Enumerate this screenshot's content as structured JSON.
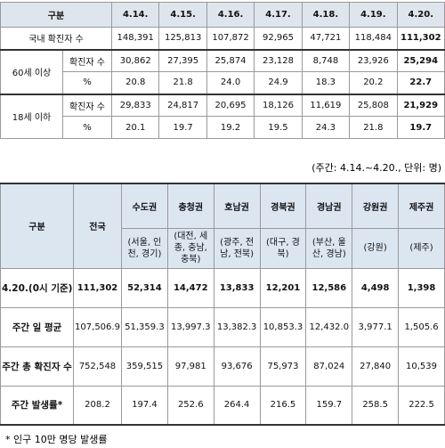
{
  "table1": {
    "header": [
      "구분",
      "4.14.",
      "4.15.",
      "4.16.",
      "4.17.",
      "4.18.",
      "4.19.",
      "4.20."
    ],
    "total_row": {
      "label": "국내 확진자 수",
      "values": [
        "148,391",
        "125,813",
        "107,872",
        "92,965",
        "47,721",
        "118,484",
        "111,302"
      ]
    },
    "groups": [
      {
        "label": "60세 이상",
        "rows": [
          {
            "label": "확진자 수",
            "values": [
              "30,862",
              "27,395",
              "25,874",
              "23,128",
              "8,748",
              "23,926",
              "25,294"
            ]
          },
          {
            "label": "%",
            "values": [
              "20.8",
              "21.8",
              "24.0",
              "24.9",
              "18.3",
              "20.2",
              "22.7"
            ]
          }
        ]
      },
      {
        "label": "18세 이하",
        "rows": [
          {
            "label": "확진자 수",
            "values": [
              "29,833",
              "24,817",
              "20,695",
              "18,126",
              "11,619",
              "25,808",
              "21,929"
            ]
          },
          {
            "label": "%",
            "values": [
              "20.1",
              "19.7",
              "19.2",
              "19.5",
              "24.3",
              "21.8",
              "19.7"
            ]
          }
        ]
      }
    ]
  },
  "table2": {
    "note": "(주간: 4.14.~4.20., 단위: 명)",
    "header": {
      "label": "구분",
      "columns": [
        {
          "name": "전국"
        },
        {
          "name": "수도권",
          "detail": "(서울, 인천, 경기)"
        },
        {
          "name": "충청권",
          "detail": "(대전, 세종, 충남, 충북)"
        },
        {
          "name": "호남권",
          "detail": "(광주, 전남, 전북)"
        },
        {
          "name": "경북권",
          "detail": "(대구, 경북)"
        },
        {
          "name": "경남권",
          "detail": "(부산, 울산, 경남)"
        },
        {
          "name": "강원권",
          "detail": "(강원)"
        },
        {
          "name": "제주권",
          "detail": "(제주)"
        }
      ]
    },
    "rows": [
      {
        "label": "4.20.(0시 기준)",
        "values": [
          "111,302",
          "52,314",
          "14,472",
          "13,833",
          "12,201",
          "12,586",
          "4,498",
          "1,398"
        ]
      },
      {
        "label": "주간 일 평균",
        "values": [
          "107,506.9",
          "51,359.3",
          "13,997.3",
          "13,382.3",
          "10,853.3",
          "12,432.0",
          "3,977.1",
          "1,505.6"
        ]
      },
      {
        "label": "주간 총 확진자 수",
        "values": [
          "752,548",
          "359,515",
          "97,981",
          "93,676",
          "75,973",
          "87,024",
          "27,840",
          "10,539"
        ]
      },
      {
        "label": "주간 발생률*",
        "values": [
          "208.2",
          "197.4",
          "252.6",
          "264.4",
          "216.5",
          "159.7",
          "258.5",
          "222.5"
        ]
      }
    ],
    "footnote": "* 인구 10만 명당 발생률"
  }
}
